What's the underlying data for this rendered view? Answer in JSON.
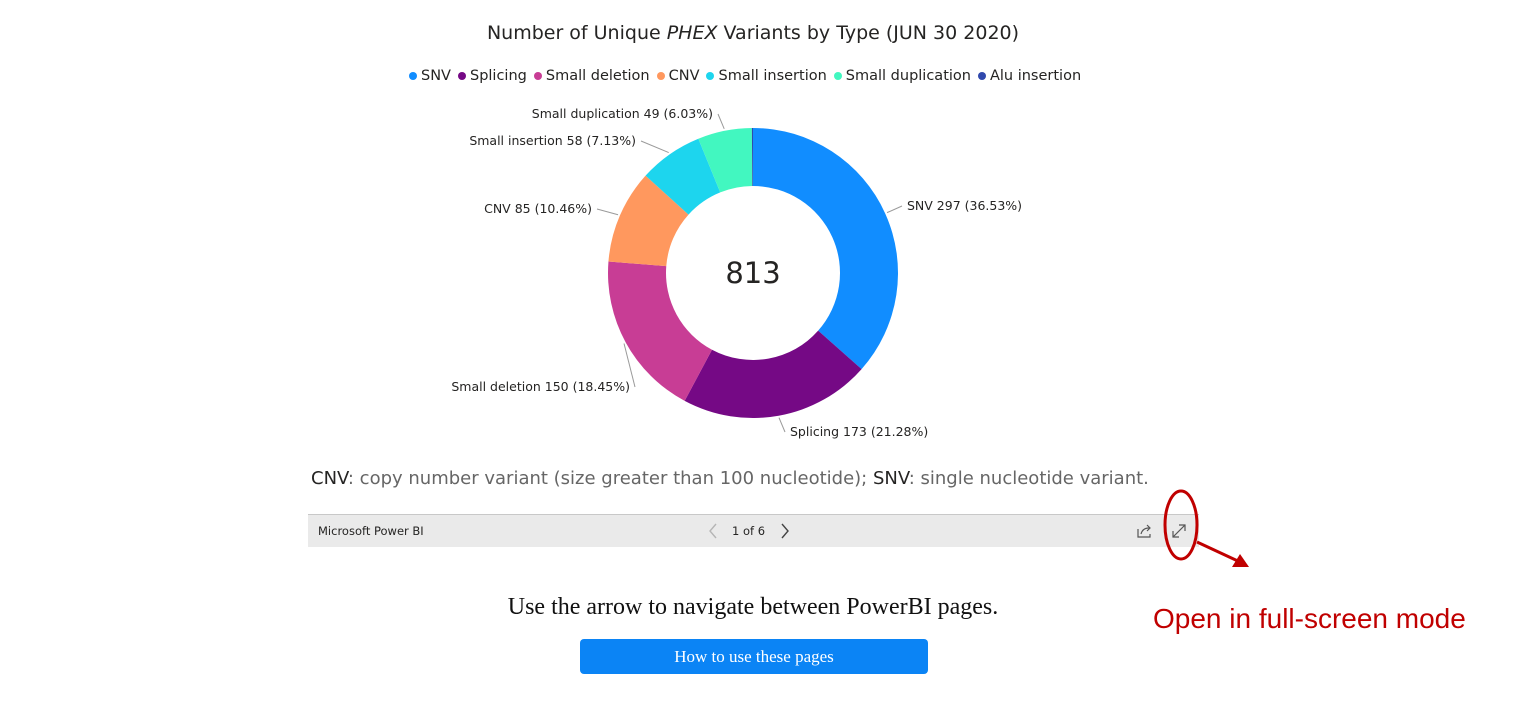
{
  "chart_data": {
    "type": "pie",
    "title_prefix": "Number of Unique ",
    "title_gene": "PHEX",
    "title_suffix": " Variants by Type (JUN 30 2020)",
    "center_value": "813",
    "slices": [
      {
        "name": "SNV",
        "value": 297,
        "percent": "36.53%",
        "label": "SNV 297 (36.53%)",
        "color": "#118dff"
      },
      {
        "name": "Splicing",
        "value": 173,
        "percent": "21.28%",
        "label": "Splicing 173 (21.28%)",
        "color": "#750985"
      },
      {
        "name": "Small deletion",
        "value": 150,
        "percent": "18.45%",
        "label": "Small deletion 150 (18.45%)",
        "color": "#c83d95"
      },
      {
        "name": "CNV",
        "value": 85,
        "percent": "10.46%",
        "label": "CNV 85 (10.46%)",
        "color": "#ff985e"
      },
      {
        "name": "Small insertion",
        "value": 58,
        "percent": "7.13%",
        "label": "Small insertion 58 (7.13%)",
        "color": "#1dd5ee"
      },
      {
        "name": "Small duplication",
        "value": 49,
        "percent": "6.03%",
        "label": "Small duplication 49 (6.03%)",
        "color": "#42f7c0"
      },
      {
        "name": "Alu insertion",
        "value": 1,
        "percent": "",
        "label": "",
        "color": "#3049ad"
      }
    ],
    "legend_position": "top"
  },
  "footnote": {
    "cnv_abbr": "CNV",
    "cnv_text": ": copy number variant (size greater than 100 nucleotide); ",
    "snv_abbr": "SNV",
    "snv_text": ": single nucleotide variant."
  },
  "pbi_bar": {
    "brand": "Microsoft Power BI",
    "page_indicator": "1 of 6",
    "prev_icon": "chevron-left-icon",
    "next_icon": "chevron-right-icon",
    "share_icon": "share-icon",
    "fullscreen_icon": "expand-icon"
  },
  "annotation": {
    "text": "Open in full-screen mode",
    "color": "#c00000"
  },
  "instruction": "Use the arrow to navigate between PowerBI pages.",
  "help_button": {
    "label": "How to use these pages",
    "color": "#0b84f5"
  }
}
